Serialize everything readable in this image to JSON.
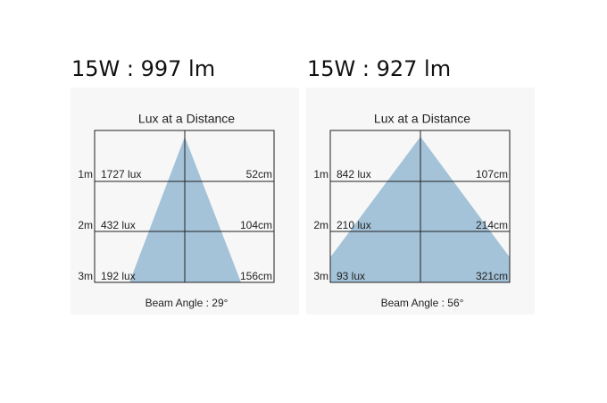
{
  "panels": [
    {
      "title": "15W : 997 lm",
      "chart_title": "Lux at a Distance",
      "rows": [
        {
          "distance": "1m",
          "lux": "1727 lux",
          "diameter": "52cm"
        },
        {
          "distance": "2m",
          "lux": "432 lux",
          "diameter": "104cm"
        },
        {
          "distance": "3m",
          "lux": "192 lux",
          "diameter": "156cm"
        }
      ],
      "beam_angle": "Beam Angle : 29°"
    },
    {
      "title": "15W : 927 lm",
      "chart_title": "Lux at a Distance",
      "rows": [
        {
          "distance": "1m",
          "lux": "842 lux",
          "diameter": "107cm"
        },
        {
          "distance": "2m",
          "lux": "210 lux",
          "diameter": "214cm"
        },
        {
          "distance": "3m",
          "lux": "93 lux",
          "diameter": "321cm"
        }
      ],
      "beam_angle": "Beam Angle : 56°"
    }
  ]
}
